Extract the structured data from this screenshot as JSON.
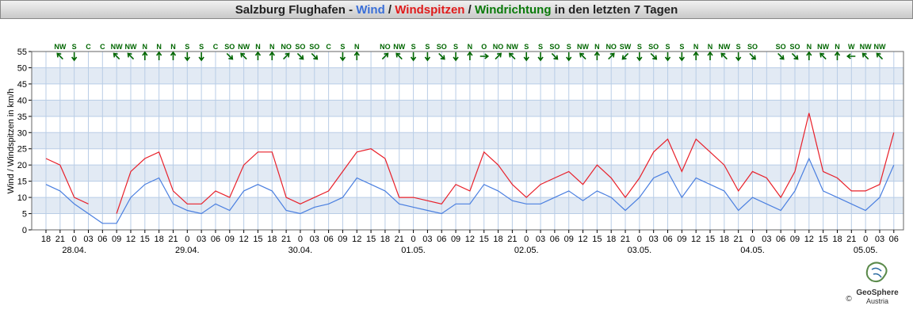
{
  "chart_data": {
    "type": "line",
    "title": [
      {
        "text": "Salzburg Flughafen - ",
        "color": "#222222"
      },
      {
        "text": "Wind",
        "color": "#3a6fd8"
      },
      {
        "text": " / ",
        "color": "#222222"
      },
      {
        "text": "Windspitzen",
        "color": "#e01b1b"
      },
      {
        "text": " / ",
        "color": "#222222"
      },
      {
        "text": "Windrichtung",
        "color": "#0a7a0a"
      },
      {
        "text": " in den letzten 7 Tagen",
        "color": "#222222"
      }
    ],
    "y_label": "Wind / Windspitzen in km/h",
    "categories": [
      "18",
      "21",
      "0",
      "03",
      "06",
      "09",
      "12",
      "15",
      "18",
      "21",
      "0",
      "03",
      "06",
      "09",
      "12",
      "15",
      "18",
      "21",
      "0",
      "03",
      "06",
      "09",
      "12",
      "15",
      "18",
      "21",
      "0",
      "03",
      "06",
      "09",
      "12",
      "15",
      "18",
      "21",
      "0",
      "03",
      "06",
      "09",
      "12",
      "15",
      "18",
      "21",
      "0",
      "03",
      "06",
      "09",
      "12",
      "15",
      "18",
      "21",
      "0",
      "03",
      "06",
      "09",
      "12",
      "15",
      "18",
      "21",
      "0",
      "03",
      "06"
    ],
    "dates": [
      null,
      null,
      "28.04.",
      null,
      null,
      null,
      null,
      null,
      null,
      null,
      "29.04.",
      null,
      null,
      null,
      null,
      null,
      null,
      null,
      "30.04.",
      null,
      null,
      null,
      null,
      null,
      null,
      null,
      "01.05.",
      null,
      null,
      null,
      null,
      null,
      null,
      null,
      "02.05.",
      null,
      null,
      null,
      null,
      null,
      null,
      null,
      "03.05.",
      null,
      null,
      null,
      null,
      null,
      null,
      null,
      "04.05.",
      null,
      null,
      null,
      null,
      null,
      null,
      null,
      "05.05.",
      null,
      null
    ],
    "directions": [
      null,
      "NW",
      "S",
      "C",
      "C",
      "NW",
      "NW",
      "N",
      "N",
      "N",
      "S",
      "S",
      "C",
      "SO",
      "NW",
      "N",
      "N",
      "NO",
      "SO",
      "SO",
      "C",
      "S",
      "N",
      null,
      "NO",
      "NW",
      "S",
      "S",
      "SO",
      "S",
      "N",
      "O",
      "NO",
      "NW",
      "S",
      "S",
      "SO",
      "S",
      "NW",
      "N",
      "NO",
      "SW",
      "S",
      "SO",
      "S",
      "S",
      "N",
      "N",
      "NW",
      "S",
      "SO",
      null,
      "SO",
      "SO",
      "N",
      "NW",
      "N",
      "W",
      "NW",
      "NW",
      null
    ],
    "direction_color": "#006600",
    "series": [
      {
        "name": "Wind",
        "color": "#4a7fe0",
        "values": [
          14,
          12,
          8,
          5,
          2,
          2,
          10,
          14,
          16,
          8,
          6,
          5,
          8,
          6,
          12,
          14,
          12,
          6,
          5,
          7,
          8,
          10,
          16,
          14,
          12,
          8,
          7,
          6,
          5,
          8,
          8,
          14,
          12,
          9,
          8,
          8,
          10,
          12,
          9,
          12,
          10,
          6,
          10,
          16,
          18,
          10,
          16,
          14,
          12,
          6,
          10,
          8,
          6,
          12,
          22,
          12,
          10,
          8,
          6,
          10,
          20
        ]
      },
      {
        "name": "Windspitzen",
        "color": "#e8202a",
        "values": [
          22,
          20,
          10,
          8,
          null,
          5,
          18,
          22,
          24,
          12,
          8,
          8,
          12,
          10,
          20,
          24,
          24,
          10,
          8,
          10,
          12,
          18,
          24,
          25,
          22,
          10,
          10,
          9,
          8,
          14,
          12,
          24,
          20,
          14,
          10,
          14,
          16,
          18,
          14,
          20,
          16,
          10,
          16,
          24,
          28,
          18,
          28,
          24,
          20,
          12,
          18,
          16,
          10,
          18,
          36,
          18,
          16,
          12,
          12,
          14,
          30
        ]
      }
    ],
    "ylim": [
      0,
      55
    ],
    "yticks": [
      0,
      5,
      10,
      15,
      20,
      25,
      30,
      35,
      40,
      45,
      50,
      55
    ],
    "grid": true,
    "logo": {
      "name": "GeoSphere",
      "sub": "Austria",
      "copyright": "©"
    }
  }
}
